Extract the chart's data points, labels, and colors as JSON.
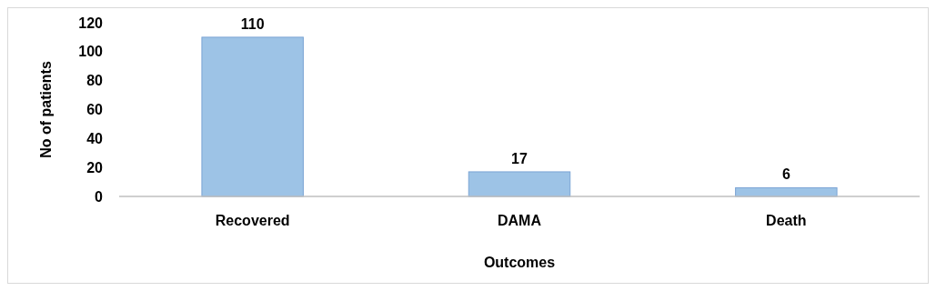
{
  "chart_data": {
    "type": "bar",
    "categories": [
      "Recovered",
      "DAMA",
      "Death"
    ],
    "values": [
      110,
      17,
      6
    ],
    "color": "#9dc3e6",
    "xlabel": "Outcomes",
    "ylabel": "No of patients",
    "ylim": [
      0,
      120
    ],
    "yticks": [
      0,
      20,
      40,
      60,
      80,
      100,
      120
    ],
    "data_labels": true,
    "grid": false
  }
}
